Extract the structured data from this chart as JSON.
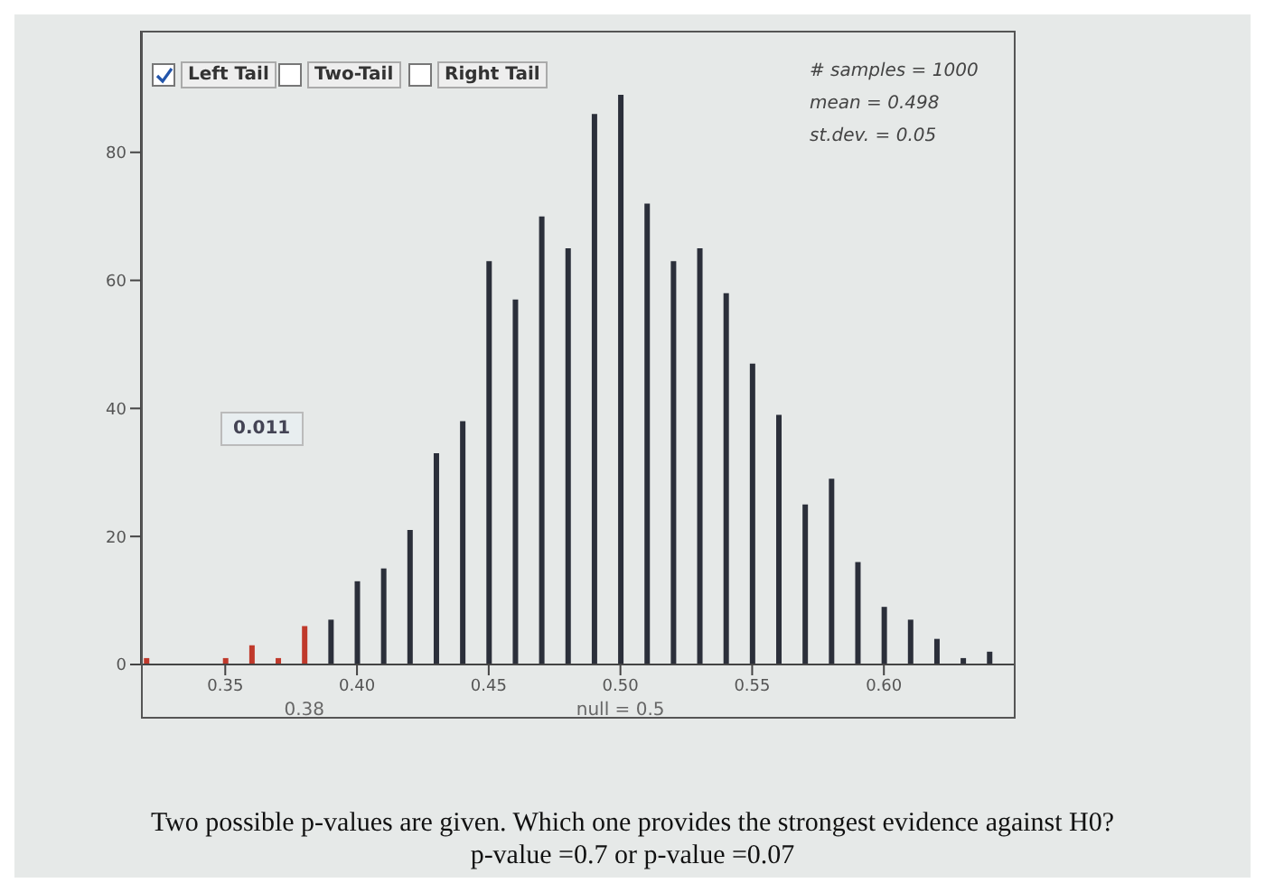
{
  "chart_data": {
    "type": "bar",
    "x": [
      0.32,
      0.35,
      0.36,
      0.37,
      0.38,
      0.39,
      0.4,
      0.41,
      0.42,
      0.43,
      0.44,
      0.45,
      0.46,
      0.47,
      0.48,
      0.49,
      0.5,
      0.51,
      0.52,
      0.53,
      0.54,
      0.55,
      0.56,
      0.57,
      0.58,
      0.59,
      0.6,
      0.61,
      0.62,
      0.63,
      0.64
    ],
    "values": [
      1,
      1,
      3,
      1,
      6,
      7,
      13,
      15,
      21,
      33,
      38,
      63,
      57,
      70,
      65,
      86,
      89,
      72,
      63,
      65,
      58,
      47,
      39,
      25,
      29,
      16,
      9,
      7,
      4,
      1,
      2
    ],
    "colors": [
      "#c0392b",
      "#c0392b",
      "#c0392b",
      "#c0392b",
      "#c0392b",
      "#2b2f3a",
      "#2b2f3a",
      "#2b2f3a",
      "#2b2f3a",
      "#2b2f3a",
      "#2b2f3a",
      "#2b2f3a",
      "#2b2f3a",
      "#2b2f3a",
      "#2b2f3a",
      "#2b2f3a",
      "#2b2f3a",
      "#2b2f3a",
      "#2b2f3a",
      "#2b2f3a",
      "#2b2f3a",
      "#2b2f3a",
      "#2b2f3a",
      "#2b2f3a",
      "#2b2f3a",
      "#2b2f3a",
      "#2b2f3a",
      "#2b2f3a",
      "#2b2f3a",
      "#2b2f3a",
      "#2b2f3a"
    ],
    "xlim": [
      0.318,
      0.65
    ],
    "xticks": [
      0.35,
      {
        "value": 0.4,
        "label": "0.40"
      },
      0.45,
      {
        "value": 0.5,
        "label": "0.50"
      },
      0.55,
      {
        "value": 0.6,
        "label": "0.60"
      }
    ],
    "ylim": [
      0,
      99
    ],
    "yticks": [
      0,
      20,
      40,
      60,
      80
    ],
    "grid": false,
    "annotations": [
      "Left Tail",
      "Two-Tail",
      "Right Tail",
      "# samples = 1000",
      "mean = 0.498",
      "st.dev. = 0.05",
      "0.011",
      {
        "text": "0.38",
        "x": 0.38,
        "y": 0
      },
      {
        "text": "null = 0.5",
        "x": 0.5,
        "y": 0
      },
      "Two possible p-values are given. Which one provides the strongest evidence against H0?",
      "p-value =0.7 or p-value =0.07"
    ]
  }
}
